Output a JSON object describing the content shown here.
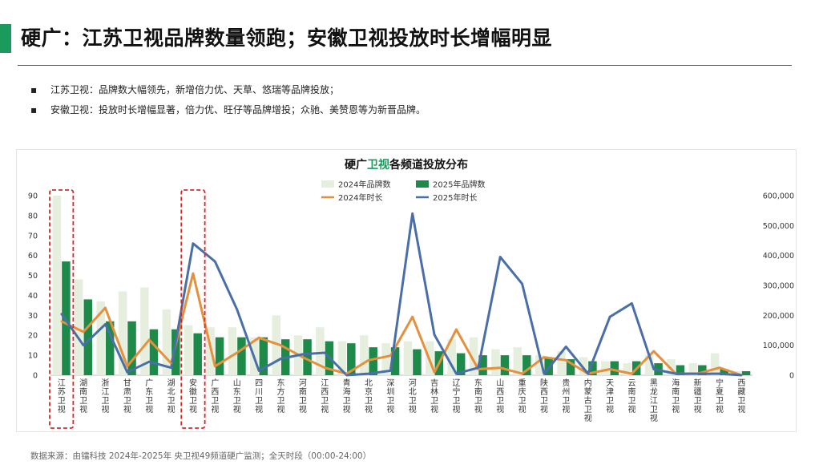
{
  "header": {
    "title": "硬广：江苏卫视品牌数量领跑；安徽卫视投放时长增幅明显",
    "accent_color": "#1a9a5c"
  },
  "bullets": [
    "江苏卫视：品牌数大幅领先，新增倍力优、天草、悠瑞等品牌投放；",
    "安徽卫视：投放时长增幅显著，倍力优、旺仔等品牌增投；众驰、美赞恩等为新晋品牌。"
  ],
  "bullet_marker": "▪",
  "footer": {
    "source": "数据来源：由镭科技  2024年-2025年 央卫视49频道硬广监测；全天时段（00:00-24:00）"
  },
  "chart_data": {
    "type": "bar",
    "title_parts": [
      "硬广",
      "卫视",
      "各频道投放分布"
    ],
    "highlight_color": "#1a9a5c",
    "legend": [
      "2024年品牌数",
      "2025年品牌数",
      "2024年时长",
      "2025年时长"
    ],
    "legend_position": "top-center",
    "colors": {
      "brand_2024": "#e6eedd",
      "brand_2025": "#1d8a4a",
      "duration_2024": "#e4903c",
      "duration_2025": "#4a6fa8"
    },
    "categories": [
      "江苏卫视",
      "湖南卫视",
      "浙江卫视",
      "甘肃卫视",
      "广东卫视",
      "湖北卫视",
      "安徽卫视",
      "广西卫视",
      "山东卫视",
      "四川卫视",
      "东方卫视",
      "河南卫视",
      "江西卫视",
      "青海卫视",
      "北京卫视",
      "深圳卫视",
      "河北卫视",
      "吉林卫视",
      "辽宁卫视",
      "东南卫视",
      "山西卫视",
      "重庆卫视",
      "陕西卫视",
      "贵州卫视",
      "内蒙古卫视",
      "天津卫视",
      "云南卫视",
      "黑龙江卫视",
      "海南卫视",
      "新疆卫视",
      "宁夏卫视",
      "西藏卫视"
    ],
    "y_left": {
      "min": 0,
      "max": 90,
      "ticks": [
        0,
        10,
        20,
        30,
        40,
        50,
        60,
        70,
        80,
        90
      ]
    },
    "y_right": {
      "min": 0,
      "max": 600000,
      "ticks": [
        "0",
        "100,000",
        "200,000",
        "300,000",
        "400,000",
        "500,000",
        "600,000"
      ]
    },
    "highlighted_categories": [
      "江苏卫视",
      "安徽卫视"
    ],
    "series": [
      {
        "name": "2024年品牌数",
        "type": "bar",
        "axis": "left",
        "values": [
          90,
          48,
          37,
          42,
          44,
          33,
          25,
          24,
          24,
          19,
          30,
          20,
          24,
          17,
          20,
          16,
          17,
          17,
          18,
          19,
          13,
          14,
          10,
          12,
          9,
          7,
          6,
          10,
          8,
          6,
          11,
          2
        ]
      },
      {
        "name": "2025年品牌数",
        "type": "bar",
        "axis": "left",
        "values": [
          57,
          38,
          27,
          27,
          23,
          23,
          21,
          19,
          19,
          19,
          18,
          18,
          17,
          16,
          14,
          14,
          13,
          12,
          11,
          10,
          10,
          10,
          9,
          8,
          7,
          7,
          7,
          6,
          5,
          5,
          3,
          2
        ]
      },
      {
        "name": "2024年时长",
        "type": "line",
        "axis": "right",
        "values": [
          180000,
          145000,
          225000,
          30000,
          118000,
          40000,
          340000,
          30000,
          75000,
          125000,
          100000,
          60000,
          25000,
          5000,
          50000,
          65000,
          195000,
          10000,
          153000,
          20000,
          25000,
          5000,
          60000,
          50000,
          5000,
          20000,
          5000,
          80000,
          5000,
          5000,
          25000,
          0
        ]
      },
      {
        "name": "2025年时长",
        "type": "line",
        "axis": "right",
        "values": [
          205000,
          100000,
          170000,
          10000,
          45000,
          25000,
          440000,
          380000,
          220000,
          15000,
          55000,
          70000,
          75000,
          0,
          5000,
          15000,
          540000,
          135000,
          5000,
          25000,
          395000,
          305000,
          5000,
          95000,
          5000,
          195000,
          240000,
          20000,
          5000,
          5000,
          5000,
          0
        ]
      }
    ]
  }
}
